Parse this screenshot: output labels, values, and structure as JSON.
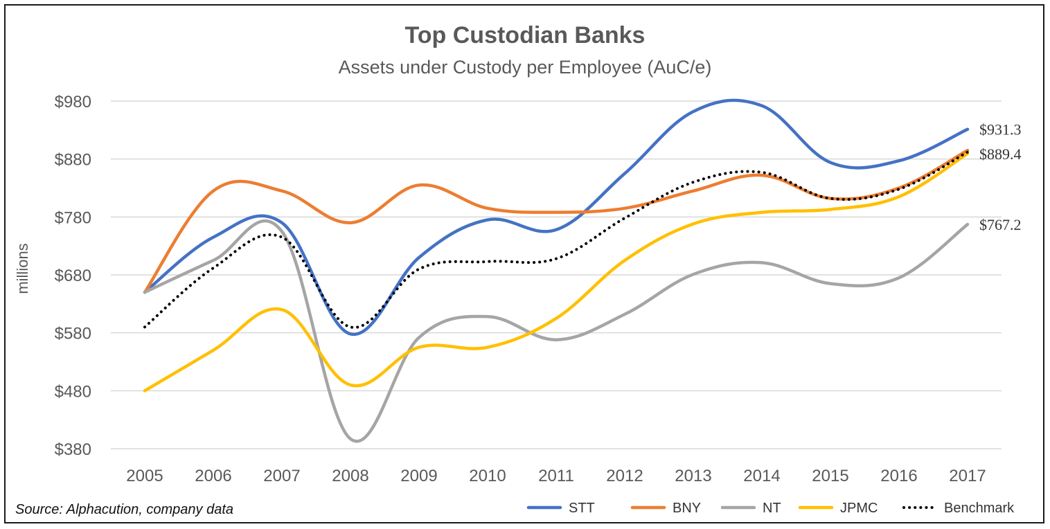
{
  "chart_data": {
    "type": "line",
    "title": "Top Custodian Banks",
    "subtitle": "Assets under Custody per Employee (AuC/e)",
    "ylabel": "millions",
    "xlabel": "",
    "ylim": [
      380,
      980
    ],
    "yticks": [
      980,
      880,
      780,
      680,
      580,
      480,
      380
    ],
    "ytick_labels": [
      "$980",
      "$880",
      "$780",
      "$680",
      "$580",
      "$480",
      "$380"
    ],
    "categories": [
      "2005",
      "2006",
      "2007",
      "2008",
      "2009",
      "2010",
      "2011",
      "2012",
      "2013",
      "2014",
      "2015",
      "2016",
      "2017"
    ],
    "series": [
      {
        "name": "STT",
        "color": "#4472C4",
        "style": "solid",
        "values": [
          650,
          745,
          770,
          578,
          710,
          775,
          758,
          855,
          962,
          972,
          874,
          877,
          931.3
        ]
      },
      {
        "name": "BNY",
        "color": "#ED7D31",
        "style": "solid",
        "values": [
          650,
          825,
          825,
          770,
          835,
          795,
          788,
          795,
          825,
          852,
          812,
          830,
          895
        ]
      },
      {
        "name": "NT",
        "color": "#A5A5A5",
        "style": "solid",
        "values": [
          650,
          705,
          755,
          397,
          572,
          608,
          568,
          612,
          681,
          701,
          665,
          675,
          767.2
        ]
      },
      {
        "name": "JPMC",
        "color": "#FFC000",
        "style": "solid",
        "values": [
          480,
          550,
          620,
          490,
          555,
          555,
          605,
          705,
          768,
          788,
          793,
          815,
          889.4
        ]
      },
      {
        "name": "Benchmark",
        "color": "#000000",
        "style": "dotted",
        "values": [
          590,
          692,
          745,
          590,
          690,
          703,
          708,
          778,
          840,
          857,
          812,
          828,
          892
        ]
      }
    ],
    "end_labels": [
      {
        "series": "STT",
        "text": "$931.3"
      },
      {
        "series": "JPMC",
        "text": "$889.4"
      },
      {
        "series": "NT",
        "text": "$767.2"
      }
    ],
    "legend": {
      "placement": "bottom-right",
      "items": [
        "STT",
        "BNY",
        "NT",
        "JPMC",
        "Benchmark"
      ]
    },
    "grid": true,
    "source": "Source: Alphacution, company data"
  }
}
